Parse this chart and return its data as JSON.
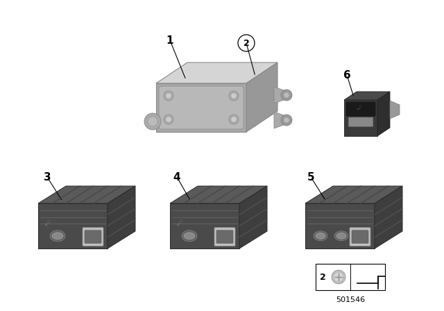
{
  "background_color": "#ffffff",
  "part_number": "501546",
  "hub_top_color": "#c8c8c8",
  "hub_front_color": "#a8a8a8",
  "hub_right_color": "#989898",
  "hub_shadow_color": "#888888",
  "module_top_color": "#5a5a5a",
  "module_front_color": "#4a4a4a",
  "module_right_color": "#3e3e3e",
  "module_rib_color": "#666666",
  "module_port_color": "#909090",
  "module_tab_color": "#aaaaaa",
  "small_top_color": "#555555",
  "small_front_color": "#3a3a3a",
  "small_right_color": "#303030",
  "label_fontsize": 11,
  "partnumber_fontsize": 8
}
